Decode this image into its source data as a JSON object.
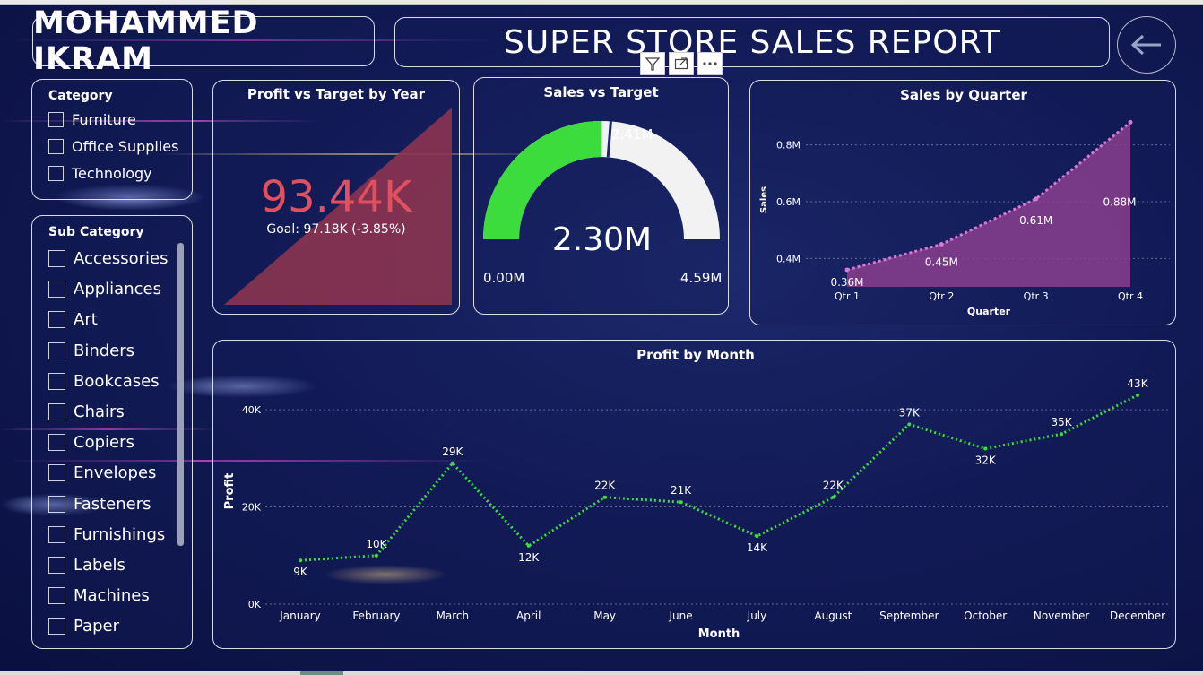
{
  "header": {
    "author_name": "MOHAMMED IKRAM",
    "report_title": "SUPER STORE SALES REPORT"
  },
  "category_slicer": {
    "title": "Category",
    "items": [
      "Furniture",
      "Office Supplies",
      "Technology"
    ]
  },
  "subcategory_slicer": {
    "title": "Sub Category",
    "items": [
      "Accessories",
      "Appliances",
      "Art",
      "Binders",
      "Bookcases",
      "Chairs",
      "Copiers",
      "Envelopes",
      "Fasteners",
      "Furnishings",
      "Labels",
      "Machines",
      "Paper"
    ]
  },
  "kpi": {
    "title": "Profit vs Target by Year",
    "value": "93.44K",
    "goal_text": "Goal: 97.18K (-3.85%)"
  },
  "gauge": {
    "title": "Sales vs Target",
    "value_label": "2.30M",
    "target_label": "2.41M",
    "min_label": "0.00M",
    "max_label": "4.59M",
    "value": 2.3,
    "target": 2.41,
    "min": 0,
    "max": 4.59,
    "fill_color": "#3ddc3d",
    "track_color": "#f2f2f2"
  },
  "colors": {
    "kpi_value": "#e0505e",
    "quarter_area": "#8a3e8e",
    "month_line": "#3ddc3d"
  },
  "chart_data": [
    {
      "type": "area",
      "title": "Sales by Quarter",
      "xlabel": "Quarter",
      "ylabel": "Sales",
      "categories": [
        "Qtr 1",
        "Qtr 2",
        "Qtr 3",
        "Qtr 4"
      ],
      "values": [
        0.36,
        0.45,
        0.61,
        0.88
      ],
      "data_labels": [
        "0.36M",
        "0.45M",
        "0.61M",
        "0.88M"
      ],
      "yticks": [
        0.4,
        0.6,
        0.8
      ],
      "ytick_labels": [
        "0.4M",
        "0.6M",
        "0.8M"
      ],
      "ylim": [
        0.3,
        0.9
      ]
    },
    {
      "type": "line",
      "title": "Profit by Month",
      "xlabel": "Month",
      "ylabel": "Profit",
      "categories": [
        "January",
        "February",
        "March",
        "April",
        "May",
        "June",
        "July",
        "August",
        "September",
        "October",
        "November",
        "December"
      ],
      "values": [
        9,
        10,
        29,
        12,
        22,
        21,
        14,
        22,
        37,
        32,
        35,
        43
      ],
      "data_labels": [
        "9K",
        "10K",
        "29K",
        "12K",
        "22K",
        "21K",
        "14K",
        "22K",
        "37K",
        "32K",
        "35K",
        "43K"
      ],
      "yticks": [
        0,
        20,
        40
      ],
      "ytick_labels": [
        "0K",
        "20K",
        "40K"
      ],
      "ylim": [
        0,
        45
      ]
    }
  ]
}
